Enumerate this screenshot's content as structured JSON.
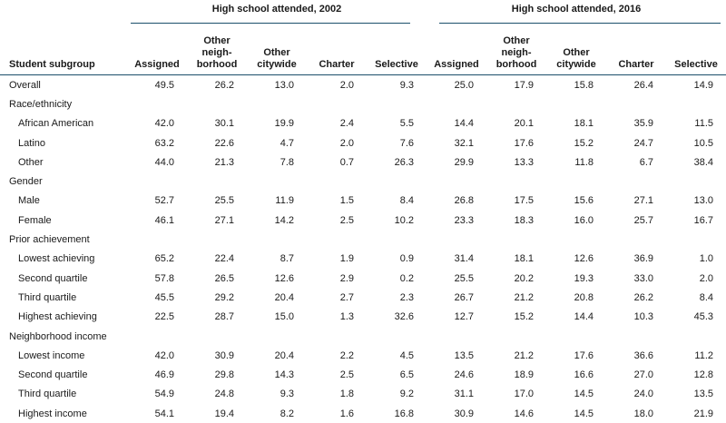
{
  "groups": {
    "g2002": "High school attended, 2002",
    "g2016": "High school attended, 2016"
  },
  "column_headers": {
    "subgroup": "Student subgroup",
    "y2002": [
      "Assigned",
      "Other\nneigh-\nborhood",
      "Other\ncitywide",
      "Charter",
      "Selective"
    ],
    "y2016": [
      "Assigned",
      "Other\nneigh-\nborhood",
      "Other\ncitywide",
      "Charter",
      "Selective"
    ]
  },
  "rows": [
    {
      "label": "Overall",
      "indent": false,
      "values": [
        "49.5",
        "26.2",
        "13.0",
        "2.0",
        "9.3",
        "25.0",
        "17.9",
        "15.8",
        "26.4",
        "14.9"
      ]
    },
    {
      "label": "Race/ethnicity",
      "indent": false,
      "values": []
    },
    {
      "label": "African American",
      "indent": true,
      "values": [
        "42.0",
        "30.1",
        "19.9",
        "2.4",
        "5.5",
        "14.4",
        "20.1",
        "18.1",
        "35.9",
        "11.5"
      ]
    },
    {
      "label": "Latino",
      "indent": true,
      "values": [
        "63.2",
        "22.6",
        "4.7",
        "2.0",
        "7.6",
        "32.1",
        "17.6",
        "15.2",
        "24.7",
        "10.5"
      ]
    },
    {
      "label": "Other",
      "indent": true,
      "values": [
        "44.0",
        "21.3",
        "7.8",
        "0.7",
        "26.3",
        "29.9",
        "13.3",
        "11.8",
        "6.7",
        "38.4"
      ]
    },
    {
      "label": "Gender",
      "indent": false,
      "values": []
    },
    {
      "label": "Male",
      "indent": true,
      "values": [
        "52.7",
        "25.5",
        "11.9",
        "1.5",
        "8.4",
        "26.8",
        "17.5",
        "15.6",
        "27.1",
        "13.0"
      ]
    },
    {
      "label": "Female",
      "indent": true,
      "values": [
        "46.1",
        "27.1",
        "14.2",
        "2.5",
        "10.2",
        "23.3",
        "18.3",
        "16.0",
        "25.7",
        "16.7"
      ]
    },
    {
      "label": "Prior achievement",
      "indent": false,
      "values": []
    },
    {
      "label": "Lowest achieving",
      "indent": true,
      "values": [
        "65.2",
        "22.4",
        "8.7",
        "1.9",
        "0.9",
        "31.4",
        "18.1",
        "12.6",
        "36.9",
        "1.0"
      ]
    },
    {
      "label": "Second quartile",
      "indent": true,
      "values": [
        "57.8",
        "26.5",
        "12.6",
        "2.9",
        "0.2",
        "25.5",
        "20.2",
        "19.3",
        "33.0",
        "2.0"
      ]
    },
    {
      "label": "Third quartile",
      "indent": true,
      "values": [
        "45.5",
        "29.2",
        "20.4",
        "2.7",
        "2.3",
        "26.7",
        "21.2",
        "20.8",
        "26.2",
        "8.4"
      ]
    },
    {
      "label": "Highest achieving",
      "indent": true,
      "values": [
        "22.5",
        "28.7",
        "15.0",
        "1.3",
        "32.6",
        "12.7",
        "15.2",
        "14.4",
        "10.3",
        "45.3"
      ]
    },
    {
      "label": "Neighborhood income",
      "indent": false,
      "values": []
    },
    {
      "label": "Lowest income",
      "indent": true,
      "values": [
        "42.0",
        "30.9",
        "20.4",
        "2.2",
        "4.5",
        "13.5",
        "21.2",
        "17.6",
        "36.6",
        "11.2"
      ]
    },
    {
      "label": "Second quartile",
      "indent": true,
      "values": [
        "46.9",
        "29.8",
        "14.3",
        "2.5",
        "6.5",
        "24.6",
        "18.9",
        "16.6",
        "27.0",
        "12.8"
      ]
    },
    {
      "label": "Third quartile",
      "indent": true,
      "values": [
        "54.9",
        "24.8",
        "9.3",
        "1.8",
        "9.2",
        "31.1",
        "17.0",
        "14.5",
        "24.0",
        "13.5"
      ]
    },
    {
      "label": "Highest income",
      "indent": true,
      "values": [
        "54.1",
        "19.4",
        "8.2",
        "1.6",
        "16.8",
        "30.9",
        "14.6",
        "14.5",
        "18.0",
        "21.9"
      ]
    }
  ]
}
